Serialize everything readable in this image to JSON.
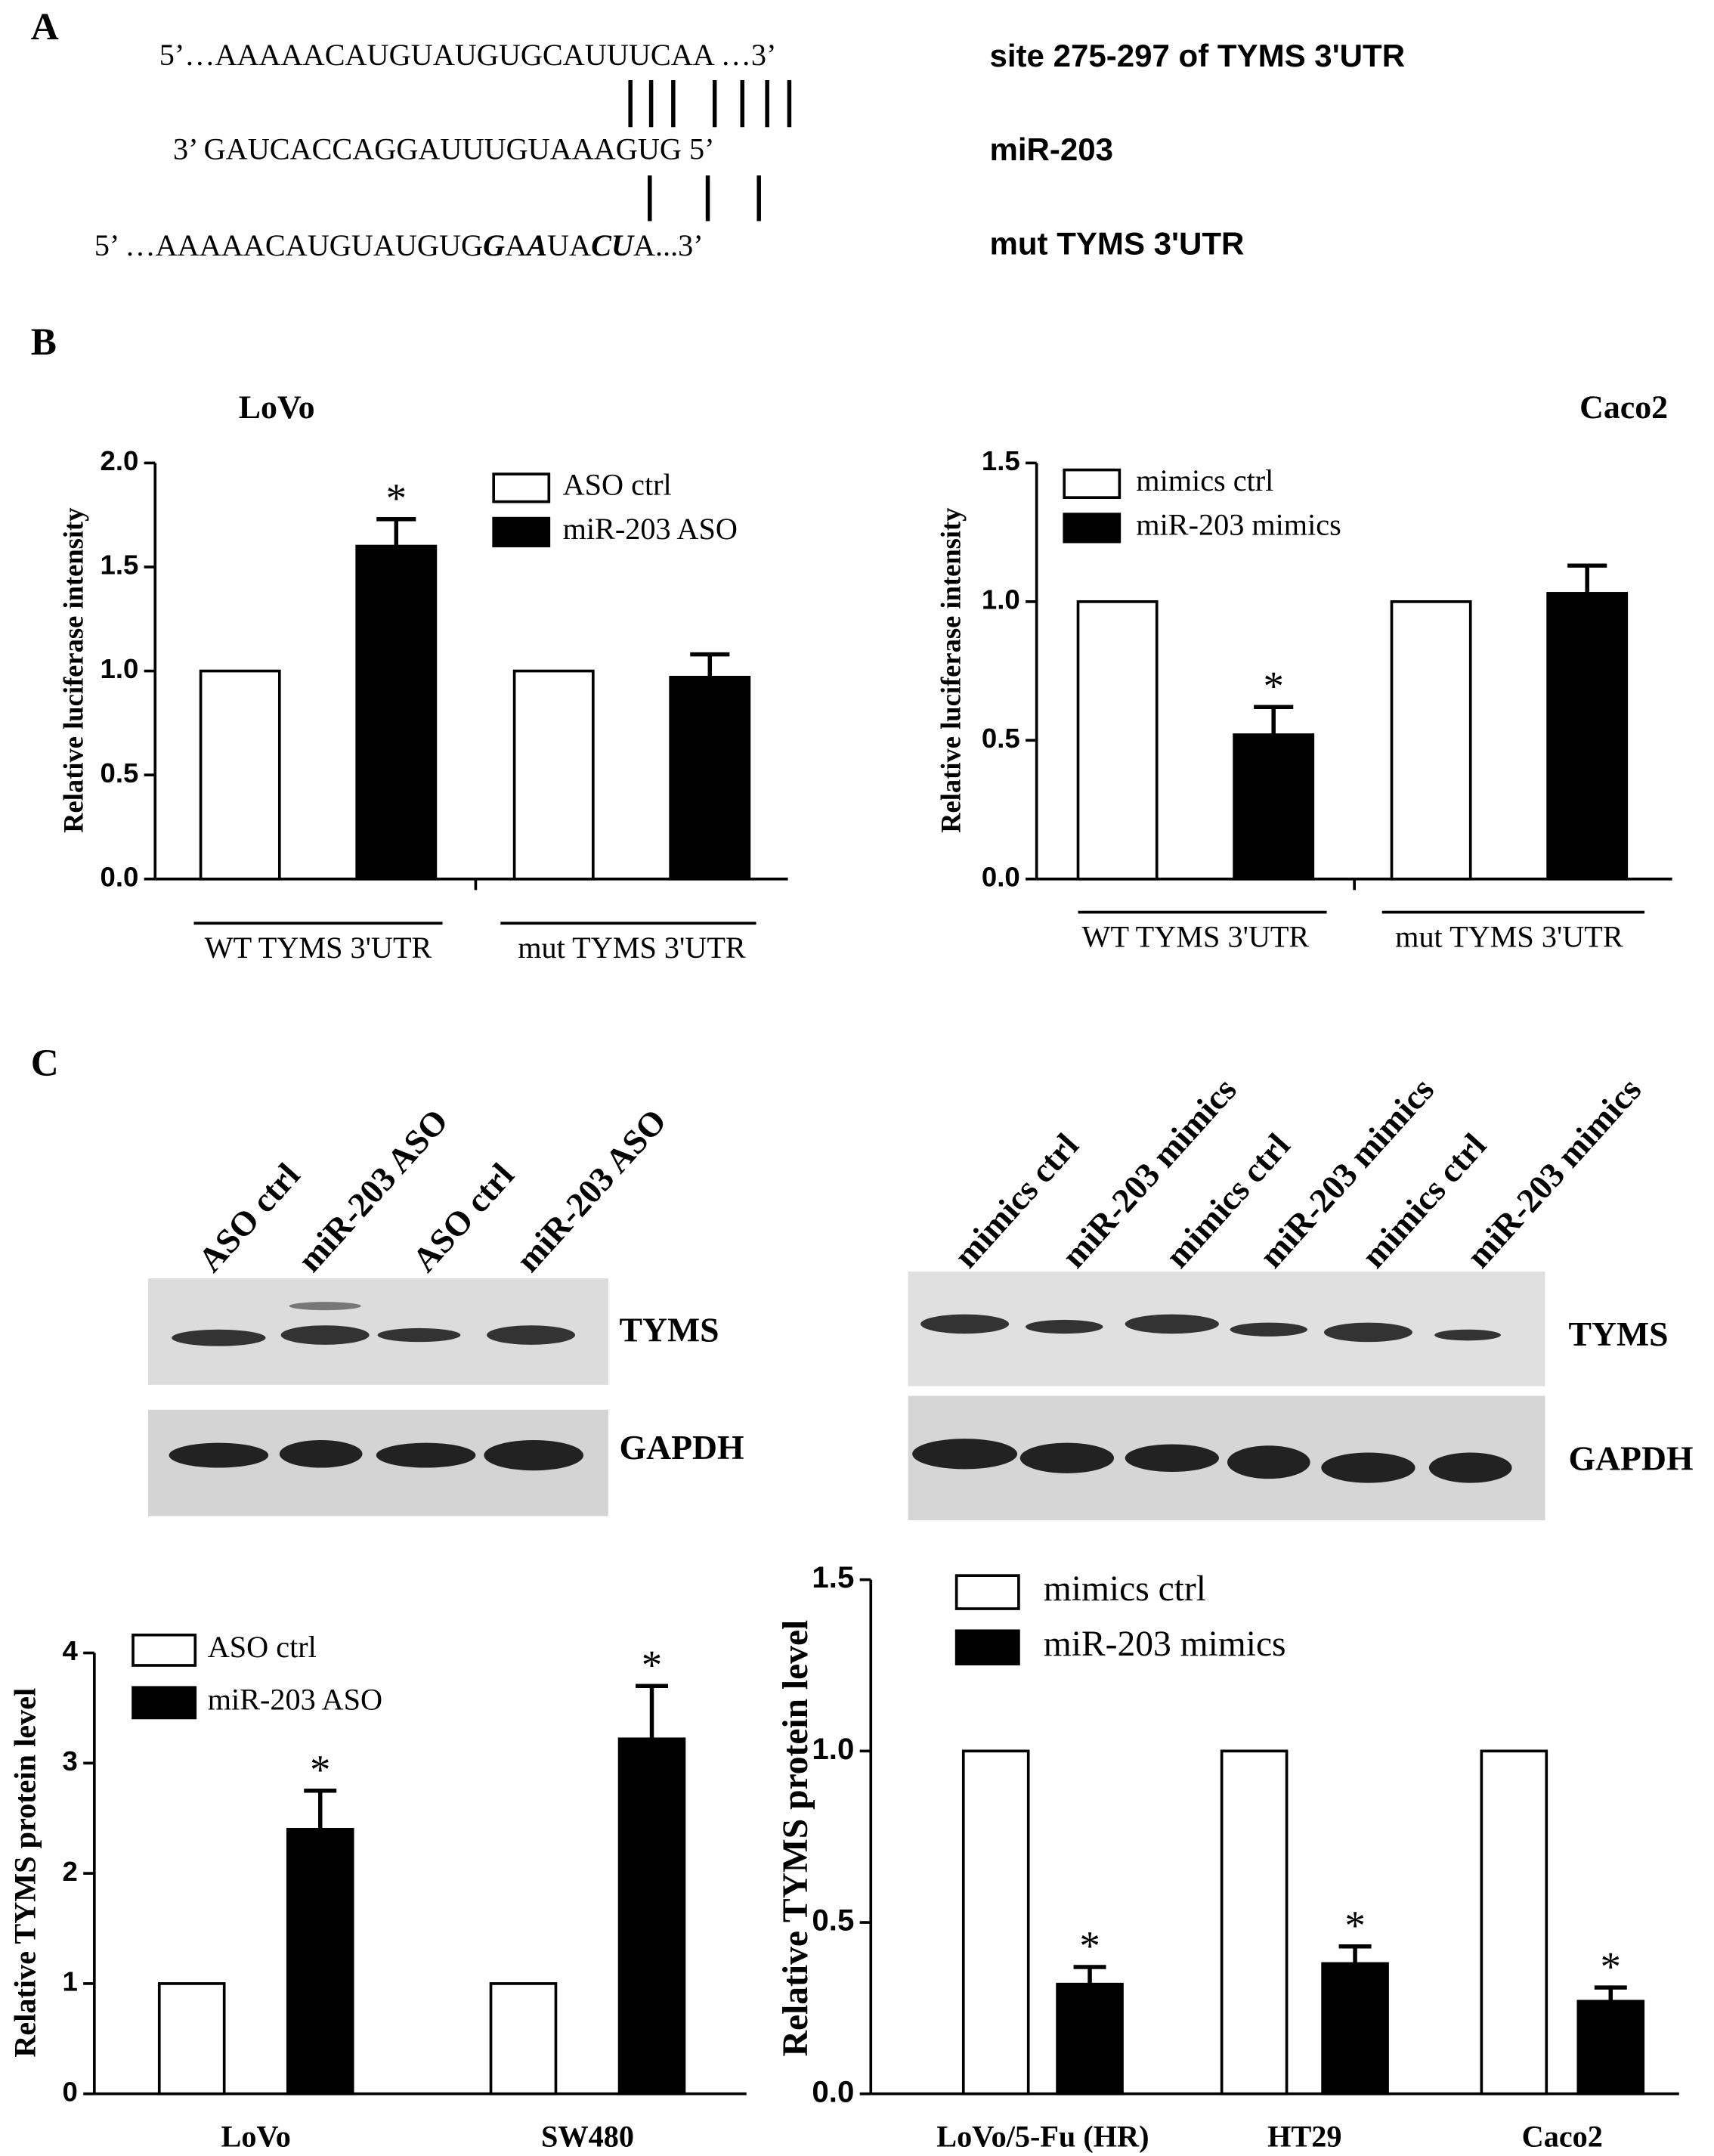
{
  "panel_labels": [
    "A",
    "B",
    "C"
  ],
  "panel_a": {
    "wt_sequence": "5’…AAAAACAUGUAUGUGCAUUUCAA …3’",
    "mir_sequence": "3’ GAUCACCAGGAUUUGUAAAGUG 5’",
    "mut_sequence": [
      "5’ …AAAAACAUGUAUGUG",
      "G",
      "A",
      "A",
      "UA",
      "CU",
      "A...3’"
    ],
    "wt_label": "site 275-297 of TYMS 3'UTR",
    "mir_label": "miR-203",
    "mut_label": "mut TYMS 3'UTR"
  },
  "blot_left": {
    "lanes": [
      "ASO ctrl",
      "miR-203 ASO",
      "ASO ctrl",
      "miR-203 ASO"
    ],
    "rows": [
      "TYMS",
      "GAPDH"
    ]
  },
  "blot_right": {
    "lanes": [
      "mimics ctrl",
      "miR-203 mimics",
      "mimics ctrl",
      "miR-203 mimics",
      "mimics ctrl",
      "miR-203 mimics"
    ],
    "rows": [
      "TYMS",
      "GAPDH"
    ]
  },
  "chart_data": [
    {
      "type": "bar",
      "title": "LoVo",
      "y_label": "Relative luciferase intensity",
      "categories": [
        "WT TYMS 3'UTR",
        "mut TYMS 3'UTR"
      ],
      "series": [
        {
          "name": "ASO ctrl",
          "color": "#ffffff",
          "values": [
            1,
            1
          ]
        },
        {
          "name": "miR-203 ASO",
          "color": "#000000",
          "values": [
            1.6,
            0.97
          ],
          "errors": [
            0.13,
            0.11
          ],
          "significance": [
            "*",
            null
          ]
        }
      ],
      "ylim": [
        0,
        2
      ],
      "yticks": [
        {
          "value": 0,
          "label": "0.0"
        },
        0.5,
        {
          "value": 1,
          "label": "1.0"
        },
        1.5,
        {
          "value": 2,
          "label": "2.0"
        }
      ]
    },
    {
      "type": "bar",
      "title": "Caco2",
      "y_label": "Relative luciferase intensity",
      "categories": [
        "WT TYMS 3'UTR",
        "mut TYMS 3'UTR"
      ],
      "series": [
        {
          "name": "mimics ctrl",
          "color": "#ffffff",
          "values": [
            1,
            1
          ]
        },
        {
          "name": "miR-203 mimics",
          "color": "#000000",
          "values": [
            0.52,
            1.03
          ],
          "errors": [
            0.1,
            0.1
          ],
          "significance": [
            "*",
            null
          ]
        }
      ],
      "ylim": [
        0,
        1.5
      ],
      "yticks": [
        {
          "value": 0,
          "label": "0.0"
        },
        0.5,
        {
          "value": 1,
          "label": "1.0"
        },
        1.5
      ]
    },
    {
      "type": "bar",
      "y_label": "Relative TYMS protein level",
      "categories": [
        "LoVo",
        "SW480"
      ],
      "series": [
        {
          "name": "ASO ctrl",
          "color": "#ffffff",
          "values": [
            1,
            1
          ]
        },
        {
          "name": "miR-203 ASO",
          "color": "#000000",
          "values": [
            2.4,
            3.22
          ],
          "errors": [
            0.35,
            0.48
          ],
          "significance": [
            "*",
            "*"
          ]
        }
      ],
      "ylim": [
        0,
        4
      ],
      "yticks": [
        0,
        1,
        2,
        3,
        4
      ]
    },
    {
      "type": "bar",
      "y_label": "Relative TYMS protein level",
      "categories": [
        "LoVo/5-Fu (HR)",
        "HT29",
        "Caco2"
      ],
      "series": [
        {
          "name": "mimics ctrl",
          "color": "#ffffff",
          "values": [
            1,
            1,
            1
          ]
        },
        {
          "name": "miR-203 mimics",
          "color": "#000000",
          "values": [
            0.32,
            0.38,
            0.27
          ],
          "errors": [
            0.05,
            0.05,
            0.04
          ],
          "significance": [
            "*",
            "*",
            "*"
          ]
        }
      ],
      "ylim": [
        0,
        1.5
      ],
      "yticks": [
        {
          "value": 0,
          "label": "0.0"
        },
        0.5,
        {
          "value": 1,
          "label": "1.0"
        },
        1.5
      ]
    }
  ]
}
